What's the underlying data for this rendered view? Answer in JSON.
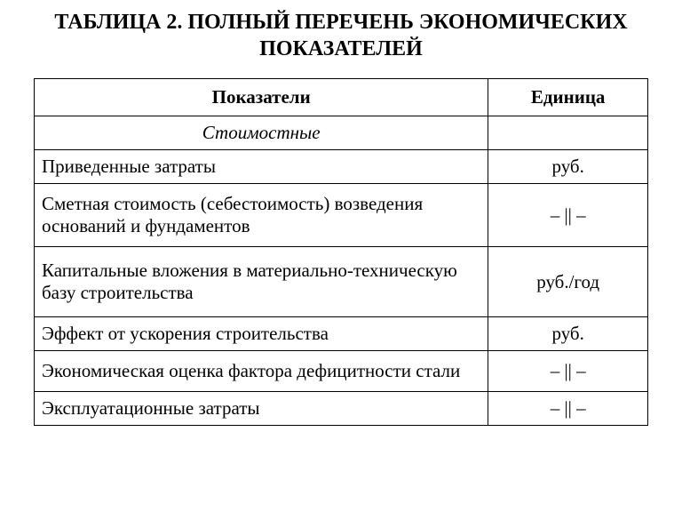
{
  "title": "ТАБЛИЦА 2. ПОЛНЫЙ ПЕРЕЧЕНЬ ЭКОНОМИЧЕСКИХ ПОКАЗАТЕЛЕЙ",
  "ditto": "– || –",
  "table": {
    "columns": [
      "Показатели",
      "Единица"
    ],
    "col_widths_pct": [
      74,
      26
    ],
    "header_align": "center",
    "indicator_align": "left",
    "unit_align": "center",
    "border_color": "#000000",
    "background_color": "#ffffff",
    "text_color": "#000000",
    "font_family": "Times New Roman",
    "header_fontsize_pt": 16,
    "cell_fontsize_pt": 15,
    "title_fontsize_pt": 18,
    "title_weight": "bold",
    "section_row_style": "italic",
    "rows": [
      {
        "type": "section",
        "indicator": "Стоимостные",
        "unit": ""
      },
      {
        "type": "data",
        "indicator": "Приведенные затраты",
        "unit": "руб."
      },
      {
        "type": "data",
        "indicator": "Сметная стоимость (себестоимость) возведения оснований и фундаментов",
        "unit": "– || –"
      },
      {
        "type": "data",
        "indicator": "Капитальные вложения в материально-техническую базу строительства",
        "unit": "руб./год"
      },
      {
        "type": "data",
        "indicator": "Эффект от ускорения строительства",
        "unit": "руб."
      },
      {
        "type": "data",
        "indicator": "Экономическая оценка фактора дефицитности стали",
        "unit": "– || –"
      },
      {
        "type": "data",
        "indicator": "Эксплуатационные затраты",
        "unit": "– || –"
      }
    ]
  }
}
